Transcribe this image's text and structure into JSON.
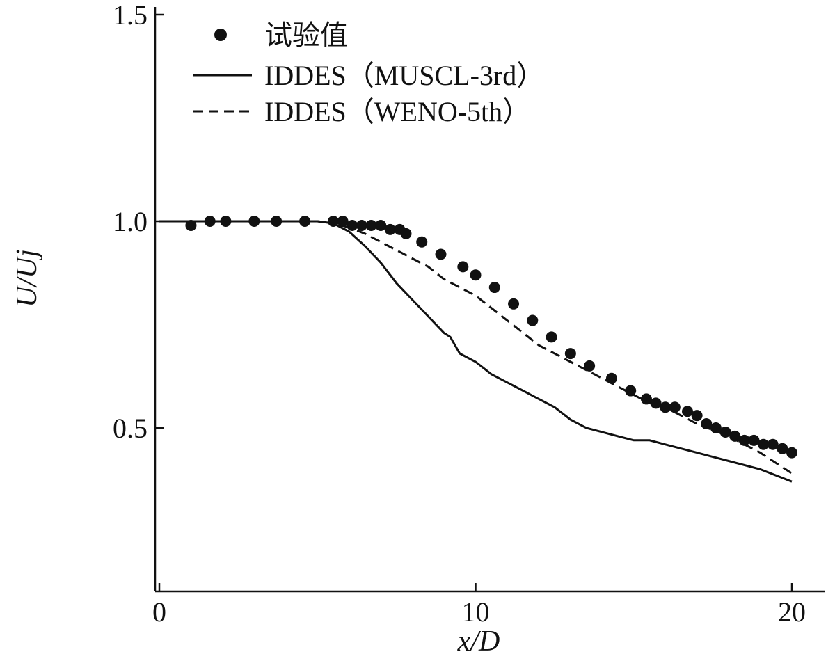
{
  "chart_data": {
    "type": "line",
    "xlabel": "x/D",
    "ylabel": "U/Uj",
    "xlim": [
      0,
      21
    ],
    "ylim": [
      0.11,
      1.51
    ],
    "xticks": [
      0,
      10,
      20
    ],
    "yticks": [
      0.5,
      1.0,
      1.5
    ],
    "xtick_labels": [
      "0",
      "10",
      "20"
    ],
    "ytick_labels": [
      "0.5",
      "1.0",
      "1.5"
    ],
    "grid": false,
    "legend_position": "top-left",
    "series": [
      {
        "name": "试验值",
        "style": "scatter",
        "marker": "filled-circle",
        "color": "#111111",
        "x": [
          1.0,
          1.6,
          2.1,
          3.0,
          3.7,
          4.6,
          5.5,
          5.8,
          6.1,
          6.4,
          6.7,
          7.0,
          7.3,
          7.6,
          7.8,
          8.3,
          8.9,
          9.6,
          10.0,
          10.6,
          11.2,
          11.8,
          12.4,
          13.0,
          13.6,
          14.3,
          14.9,
          15.4,
          15.7,
          16.0,
          16.3,
          16.7,
          17.0,
          17.3,
          17.6,
          17.9,
          18.2,
          18.5,
          18.8,
          19.1,
          19.4,
          19.7,
          20.0
        ],
        "y": [
          0.99,
          1.0,
          1.0,
          1.0,
          1.0,
          1.0,
          1.0,
          1.0,
          0.99,
          0.99,
          0.99,
          0.99,
          0.98,
          0.98,
          0.97,
          0.95,
          0.92,
          0.89,
          0.87,
          0.84,
          0.8,
          0.76,
          0.72,
          0.68,
          0.65,
          0.62,
          0.59,
          0.57,
          0.56,
          0.55,
          0.55,
          0.54,
          0.53,
          0.51,
          0.5,
          0.49,
          0.48,
          0.47,
          0.47,
          0.46,
          0.46,
          0.45,
          0.44
        ]
      },
      {
        "name": "IDDES（MUSCL-3rd）",
        "style": "solid",
        "color": "#111111",
        "x": [
          0,
          5.0,
          5.5,
          6.0,
          6.5,
          7.0,
          7.5,
          8.0,
          8.5,
          9.0,
          9.2,
          9.5,
          10.0,
          10.5,
          11.0,
          11.5,
          12.0,
          12.5,
          13.0,
          13.5,
          14.0,
          14.5,
          15.0,
          15.5,
          16.0,
          17.0,
          18.0,
          19.0,
          20.0
        ],
        "y": [
          1.0,
          1.0,
          0.995,
          0.975,
          0.94,
          0.9,
          0.85,
          0.81,
          0.77,
          0.73,
          0.72,
          0.68,
          0.66,
          0.63,
          0.61,
          0.59,
          0.57,
          0.55,
          0.52,
          0.5,
          0.49,
          0.48,
          0.47,
          0.47,
          0.46,
          0.44,
          0.42,
          0.4,
          0.37
        ]
      },
      {
        "name": "IDDES（WENO-5th）",
        "style": "dashed",
        "color": "#111111",
        "x": [
          0,
          5.0,
          5.5,
          6.0,
          6.5,
          7.0,
          7.5,
          8.0,
          8.5,
          9.0,
          9.5,
          10.0,
          10.5,
          11.0,
          11.5,
          12.0,
          12.5,
          13.0,
          13.5,
          14.0,
          14.5,
          15.0,
          15.5,
          16.0,
          17.0,
          18.0,
          19.0,
          20.0
        ],
        "y": [
          1.0,
          1.0,
          0.995,
          0.985,
          0.97,
          0.95,
          0.93,
          0.91,
          0.89,
          0.86,
          0.84,
          0.82,
          0.79,
          0.76,
          0.73,
          0.7,
          0.68,
          0.66,
          0.64,
          0.62,
          0.6,
          0.58,
          0.56,
          0.55,
          0.51,
          0.48,
          0.44,
          0.39
        ]
      }
    ]
  }
}
